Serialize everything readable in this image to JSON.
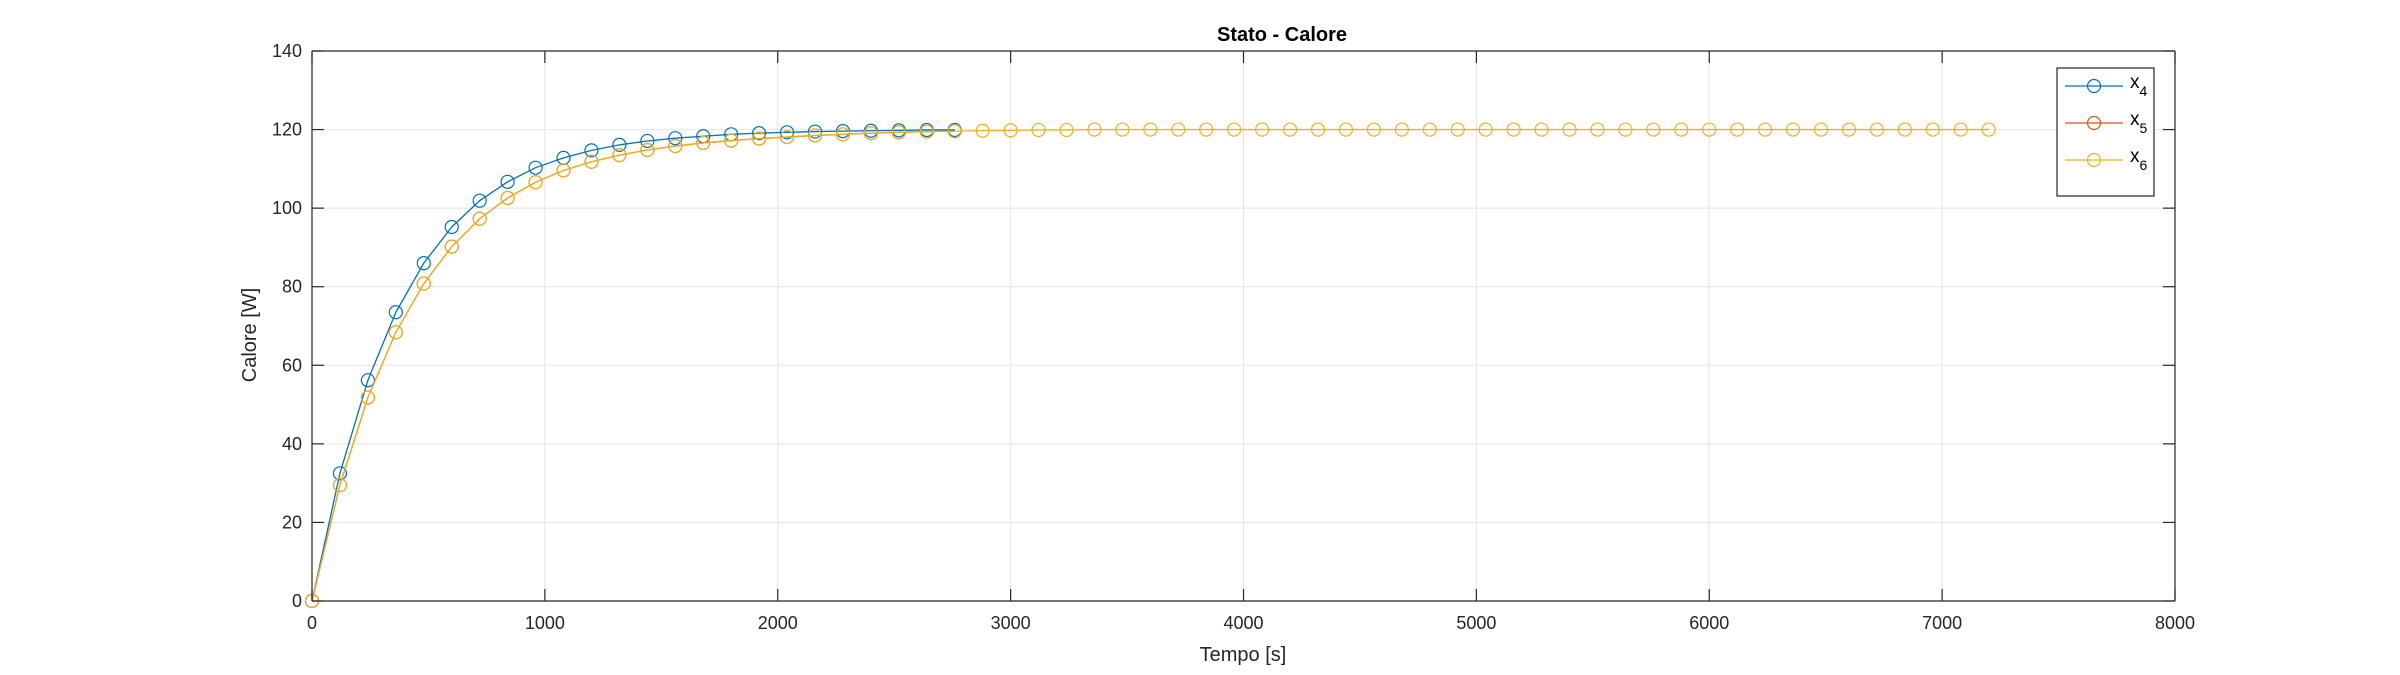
{
  "chart_data": {
    "type": "line",
    "title": "Stato - Calore",
    "xlabel": "Tempo [s]",
    "ylabel": "Calore [W]",
    "xlim": [
      0,
      8000
    ],
    "ylim": [
      0,
      140
    ],
    "xticks": [
      0,
      1000,
      2000,
      3000,
      4000,
      5000,
      6000,
      7000,
      8000
    ],
    "yticks": [
      0,
      20,
      40,
      60,
      80,
      100,
      120,
      140
    ],
    "grid": true,
    "legend_position": "top-right",
    "marker": "circle",
    "series": [
      {
        "name": "x",
        "name_subscript": "4",
        "color": "#0072BD",
        "x": [
          0,
          120,
          240,
          360,
          480,
          600,
          720,
          840,
          960,
          1080,
          1200,
          1320,
          1440,
          1560,
          1680,
          1800,
          1920,
          2040,
          2160,
          2280,
          2400,
          2520,
          2640,
          2760
        ],
        "y": [
          0,
          32.5,
          56.2,
          73.5,
          86.0,
          95.2,
          101.9,
          106.7,
          110.3,
          112.8,
          114.7,
          116.1,
          117.1,
          117.8,
          118.3,
          118.8,
          119.1,
          119.3,
          119.5,
          119.6,
          119.7,
          119.8,
          119.9,
          119.9
        ]
      },
      {
        "name": "x",
        "name_subscript": "5",
        "color": "#D95319",
        "x": [
          0,
          120,
          240,
          360,
          480,
          600,
          720,
          840,
          960,
          1080,
          1200,
          1320,
          1440,
          1560,
          1680,
          1800,
          1920,
          2040,
          2160,
          2280,
          2400,
          2520,
          2640,
          2760
        ],
        "y": [
          0,
          29.5,
          51.8,
          68.4,
          80.8,
          90.2,
          97.3,
          102.6,
          106.6,
          109.6,
          111.8,
          113.5,
          114.8,
          115.8,
          116.6,
          117.2,
          117.7,
          118.1,
          118.5,
          118.8,
          119.1,
          119.3,
          119.5,
          119.6
        ]
      },
      {
        "name": "x",
        "name_subscript": "6",
        "color": "#EDB120",
        "x": [
          0,
          120,
          240,
          360,
          480,
          600,
          720,
          840,
          960,
          1080,
          1200,
          1320,
          1440,
          1560,
          1680,
          1800,
          1920,
          2040,
          2160,
          2280,
          2400,
          2520,
          2640,
          2760,
          2880,
          3000,
          3120,
          3240,
          3360,
          3480,
          3600,
          3720,
          3840,
          3960,
          4080,
          4200,
          4320,
          4440,
          4560,
          4680,
          4800,
          4920,
          5040,
          5160,
          5280,
          5400,
          5520,
          5640,
          5760,
          5880,
          6000,
          6120,
          6240,
          6360,
          6480,
          6600,
          6720,
          6840,
          6960,
          7080,
          7200
        ],
        "y": [
          0,
          29.5,
          51.8,
          68.4,
          80.8,
          90.2,
          97.3,
          102.6,
          106.6,
          109.6,
          111.8,
          113.5,
          114.8,
          115.8,
          116.6,
          117.2,
          117.7,
          118.1,
          118.5,
          118.8,
          119.1,
          119.3,
          119.5,
          119.6,
          119.7,
          119.8,
          119.9,
          119.9,
          120,
          120,
          120,
          120,
          120,
          120,
          120,
          120,
          120,
          120,
          120,
          120,
          120,
          120,
          120,
          120,
          120,
          120,
          120,
          120,
          120,
          120,
          120,
          120,
          120,
          120,
          120,
          120,
          120,
          120,
          120,
          120,
          120
        ]
      }
    ]
  }
}
